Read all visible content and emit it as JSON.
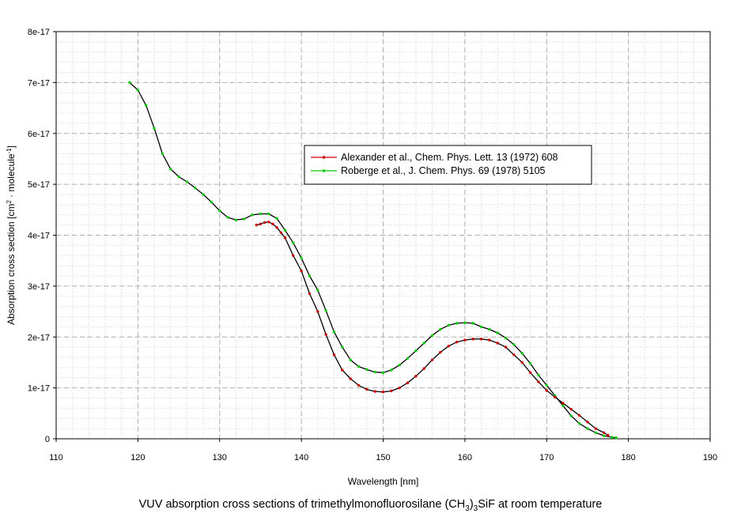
{
  "chart_data": {
    "type": "line",
    "xlabel": "Wavelength [nm]",
    "ylabel_parts": [
      "Absorption cross section [cm",
      "2",
      " · molecule",
      "-1",
      "]"
    ],
    "xlim": [
      110,
      190
    ],
    "ylim": [
      0,
      8e-17
    ],
    "xticks": [
      110,
      120,
      130,
      140,
      150,
      160,
      170,
      180,
      190
    ],
    "yticks": [
      0,
      1e-17,
      2e-17,
      3e-17,
      4e-17,
      5e-17,
      6e-17,
      7e-17,
      8e-17
    ],
    "xtick_labels": [
      "110",
      "120",
      "130",
      "140",
      "150",
      "160",
      "170",
      "180",
      "190"
    ],
    "ytick_labels": [
      "0",
      "1e-17",
      "2e-17",
      "3e-17",
      "4e-17",
      "5e-17",
      "6e-17",
      "7e-17",
      "8e-17"
    ],
    "grid": true,
    "legend": "upper-center-right",
    "series": [
      {
        "name": "Alexander et al., Chem. Phys. Lett. 13 (1972) 608",
        "color": "#cc0000",
        "x": [
          134.5,
          135,
          135.5,
          136,
          136.5,
          137,
          137.5,
          138,
          139,
          140,
          141,
          142,
          143,
          144,
          145,
          146,
          147,
          148,
          149,
          150,
          151,
          152,
          153,
          154,
          155,
          156,
          157,
          158,
          159,
          160,
          161,
          162,
          163,
          164,
          165,
          166,
          167,
          168,
          169,
          170,
          171,
          172,
          173,
          174,
          175,
          176,
          177,
          177.5
        ],
        "y": [
          4.2e-17,
          4.22e-17,
          4.25e-17,
          4.26e-17,
          4.22e-17,
          4.15e-17,
          4.05e-17,
          3.95e-17,
          3.6e-17,
          3.3e-17,
          2.85e-17,
          2.5e-17,
          2.05e-17,
          1.65e-17,
          1.35e-17,
          1.18e-17,
          1.05e-17,
          9.7e-18,
          9.3e-18,
          9.2e-18,
          9.4e-18,
          1e-17,
          1.1e-17,
          1.23e-17,
          1.38e-17,
          1.55e-17,
          1.7e-17,
          1.82e-17,
          1.9e-17,
          1.94e-17,
          1.96e-17,
          1.96e-17,
          1.94e-17,
          1.88e-17,
          1.8e-17,
          1.65e-17,
          1.5e-17,
          1.3e-17,
          1.12e-17,
          9.5e-18,
          8.2e-18,
          7e-18,
          5.8e-18,
          4.6e-18,
          3.3e-18,
          2e-18,
          1.2e-18,
          7e-19
        ]
      },
      {
        "name": "Roberge et al., J. Chem. Phys. 69 (1978) 5105",
        "color": "#00cc00",
        "x": [
          119,
          120,
          121,
          122,
          123,
          124,
          125,
          126,
          127,
          128,
          129,
          130,
          131,
          132,
          133,
          134,
          135,
          136,
          137,
          138,
          139,
          140,
          141,
          142,
          143,
          144,
          145,
          146,
          147,
          148,
          149,
          150,
          151,
          152,
          153,
          154,
          155,
          156,
          157,
          158,
          159,
          160,
          161,
          162,
          163,
          164,
          165,
          166,
          167,
          168,
          169,
          170,
          171,
          172,
          173,
          174,
          175,
          176,
          177,
          178,
          178.5
        ],
        "y": [
          7e-17,
          6.85e-17,
          6.55e-17,
          6.1e-17,
          5.6e-17,
          5.3e-17,
          5.15e-17,
          5.05e-17,
          4.93e-17,
          4.8e-17,
          4.65e-17,
          4.48e-17,
          4.35e-17,
          4.3e-17,
          4.32e-17,
          4.4e-17,
          4.42e-17,
          4.42e-17,
          4.33e-17,
          4.1e-17,
          3.85e-17,
          3.55e-17,
          3.2e-17,
          2.92e-17,
          2.52e-17,
          2.1e-17,
          1.8e-17,
          1.55e-17,
          1.42e-17,
          1.36e-17,
          1.31e-17,
          1.3e-17,
          1.35e-17,
          1.45e-17,
          1.58e-17,
          1.73e-17,
          1.88e-17,
          2.03e-17,
          2.15e-17,
          2.23e-17,
          2.27e-17,
          2.28e-17,
          2.27e-17,
          2.2e-17,
          2.15e-17,
          2.08e-17,
          1.98e-17,
          1.85e-17,
          1.68e-17,
          1.48e-17,
          1.25e-17,
          1.05e-17,
          8.5e-18,
          6.5e-18,
          4.5e-18,
          3e-18,
          2e-18,
          1.2e-18,
          6e-19,
          3e-19,
          2e-19
        ]
      }
    ]
  },
  "caption": {
    "pre": "VUV absorption cross sections of trimethylmonofluorosilane (CH",
    "sub1": "3",
    "mid": ")",
    "sub2": "3",
    "post": "SiF at room temperature"
  }
}
